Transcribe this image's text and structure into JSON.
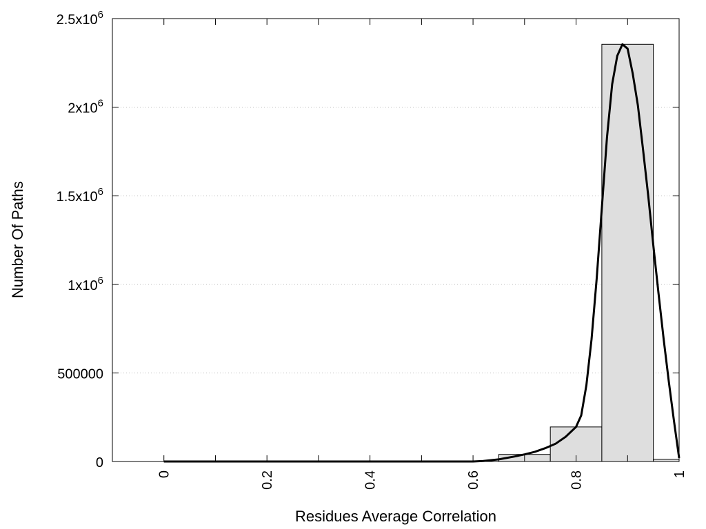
{
  "chart_data": {
    "type": "bar",
    "xlabel": "Residues Average Correlation",
    "ylabel": "Number Of Paths",
    "xlim": [
      -0.1,
      1.0
    ],
    "ylim": [
      0,
      2500000
    ],
    "grid": "horizontal dotted",
    "x_ticks": [
      {
        "value": 0,
        "label": "0"
      },
      {
        "value": 0.2,
        "label": "0.2"
      },
      {
        "value": 0.4,
        "label": "0.4"
      },
      {
        "value": 0.6,
        "label": "0.6"
      },
      {
        "value": 0.8,
        "label": "0.8"
      },
      {
        "value": 1.0,
        "label": "1"
      }
    ],
    "y_ticks": [
      {
        "value": 0,
        "label": "0"
      },
      {
        "value": 500000,
        "label": "500000"
      },
      {
        "value": 1000000,
        "label": "1x10",
        "sup": "6"
      },
      {
        "value": 1500000,
        "label": "1.5x10",
        "sup": "6"
      },
      {
        "value": 2000000,
        "label": "2x10",
        "sup": "6"
      },
      {
        "value": 2500000,
        "label": "2.5x10",
        "sup": "6"
      }
    ],
    "bars": [
      {
        "x0": 0.65,
        "x1": 0.75,
        "value": 40000
      },
      {
        "x0": 0.75,
        "x1": 0.85,
        "value": 195000
      },
      {
        "x0": 0.85,
        "x1": 0.95,
        "value": 2355000
      },
      {
        "x0": 0.95,
        "x1": 1.0,
        "value": 12000
      }
    ],
    "fit_curve": {
      "x": [
        0.0,
        0.6,
        0.62,
        0.65,
        0.68,
        0.7,
        0.72,
        0.74,
        0.76,
        0.78,
        0.8,
        0.81,
        0.82,
        0.83,
        0.84,
        0.85,
        0.86,
        0.87,
        0.88,
        0.89,
        0.9,
        0.91,
        0.92,
        0.93,
        0.94,
        0.95,
        0.96,
        0.97,
        0.98,
        0.99,
        1.0
      ],
      "y": [
        0,
        0,
        3000,
        12000,
        28000,
        40000,
        55000,
        75000,
        100000,
        140000,
        195000,
        260000,
        430000,
        690000,
        1030000,
        1430000,
        1830000,
        2130000,
        2290000,
        2355000,
        2330000,
        2190000,
        2010000,
        1760000,
        1500000,
        1220000,
        950000,
        690000,
        450000,
        230000,
        20000
      ]
    },
    "colors": {
      "bar_fill": "#dedede",
      "bar_stroke": "#000000",
      "curve": "#000000",
      "grid": "#bbbbbb"
    }
  }
}
